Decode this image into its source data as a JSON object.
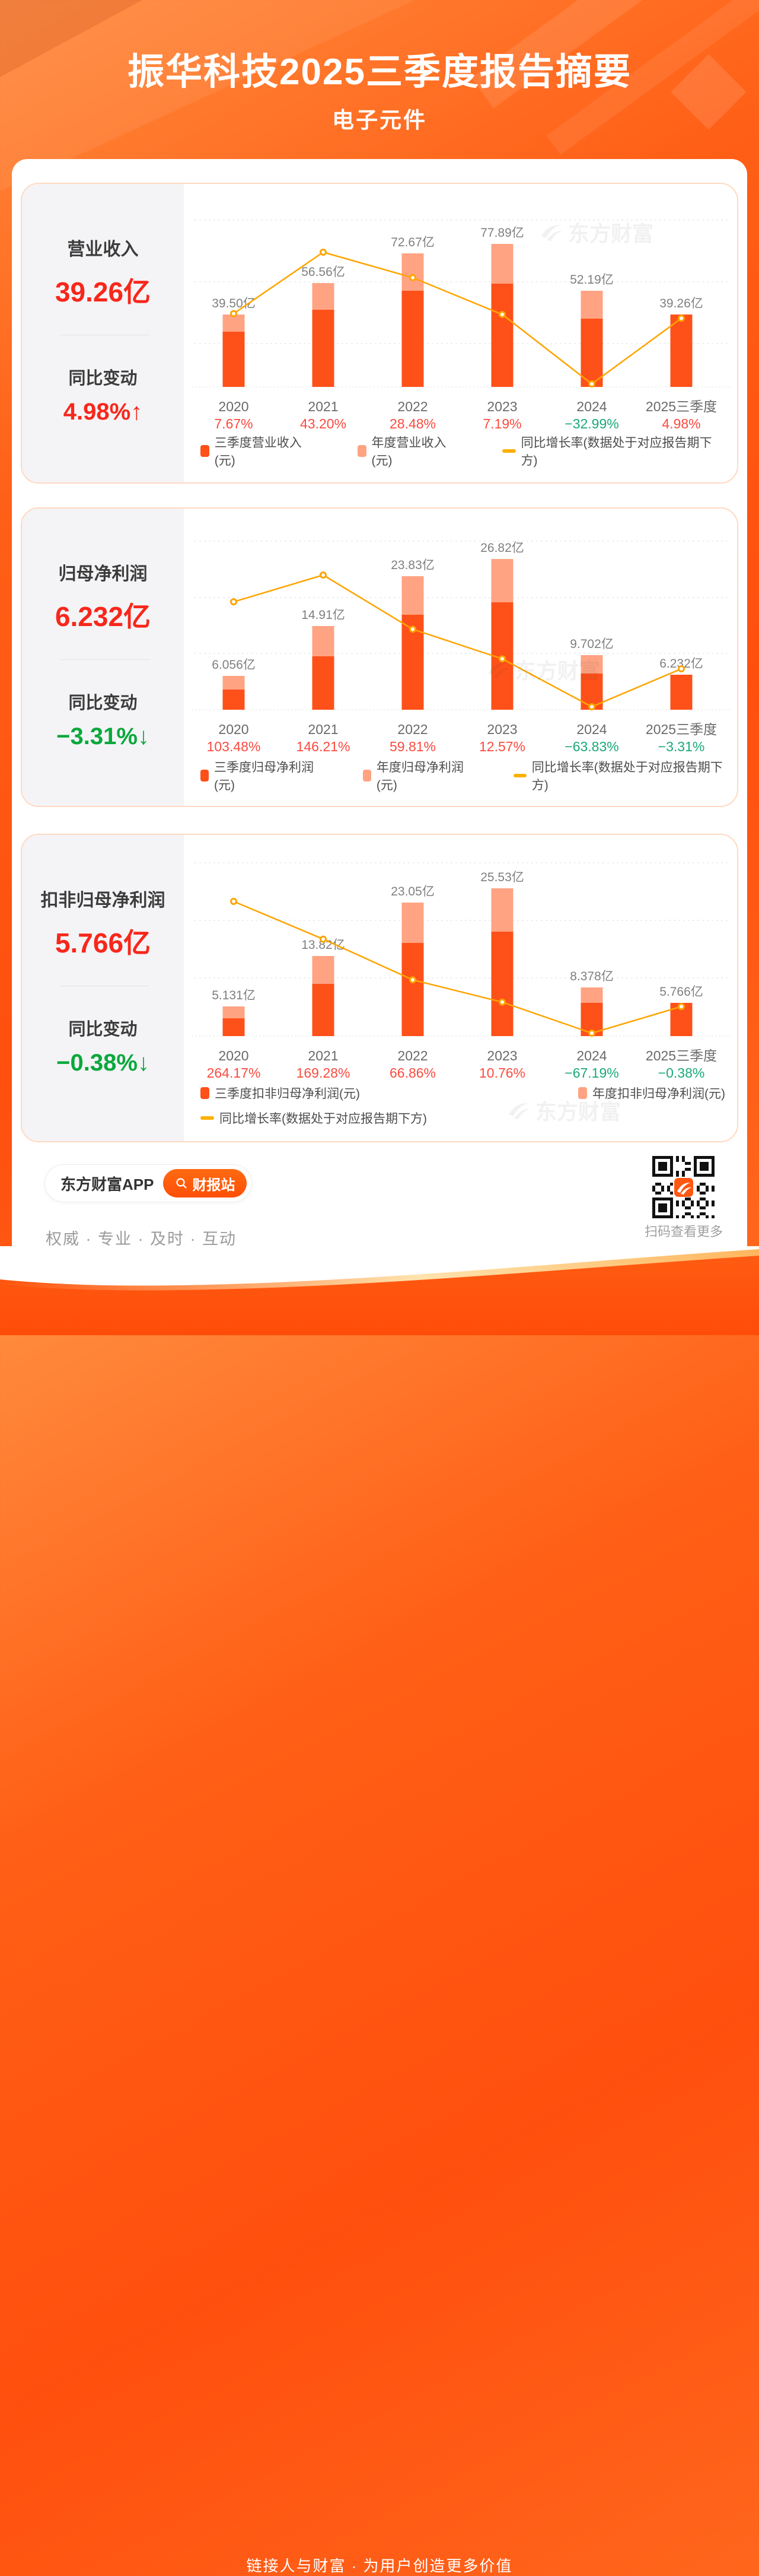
{
  "header": {
    "title": "振华科技2025三季度报告摘要",
    "subtitle": "电子元件"
  },
  "watermark_brand": "东方财富",
  "colors": {
    "q3_bar": "#fe5019",
    "annual_bar": "#ffa383",
    "growth_line": "#ffa400",
    "positive_text": "#fb4a3f",
    "negative_text": "#1aa97b",
    "panel_value_red": "#f8271b",
    "panel_value_green": "#0aa83c",
    "bar_value_label": "#7f7f7f",
    "year_label": "#6a6a6a"
  },
  "charts": [
    {
      "panel": {
        "metric_label": "营业收入",
        "metric_value": "39.26亿",
        "change_label": "同比变动",
        "change_value": "4.98%",
        "change_arrow": "↑",
        "trend": "up"
      },
      "chart_data": {
        "type": "bar+line",
        "categories": [
          "2020",
          "2021",
          "2022",
          "2023",
          "2024",
          "2025三季度"
        ],
        "bar_value_labels": [
          "39.50亿",
          "56.56亿",
          "72.67亿",
          "77.89亿",
          "52.19亿",
          "39.26亿"
        ],
        "annual_totals": [
          39.5,
          56.56,
          72.67,
          77.89,
          52.19,
          39.26
        ],
        "q3_values_est": [
          30.0,
          42.0,
          52.3,
          56.1,
          37.1,
          39.26
        ],
        "growth_pct": [
          7.67,
          43.2,
          28.48,
          7.19,
          -32.99,
          4.98
        ],
        "growth_labels": [
          "7.67%",
          "43.20%",
          "28.48%",
          "7.19%",
          "−32.99%",
          "4.98%"
        ],
        "legend": [
          {
            "label": "三季度营业收入(元)",
            "swatch": "bar",
            "color": "#fe5019"
          },
          {
            "label": "年度营业收入(元)",
            "swatch": "bar",
            "color": "#ffa383"
          },
          {
            "label": "同比增长率(数据处于对应报告期下方)",
            "swatch": "line",
            "color": "#ffb000"
          }
        ],
        "legend_rows": 1
      }
    },
    {
      "panel": {
        "metric_label": "归母净利润",
        "metric_value": "6.232亿",
        "change_label": "同比变动",
        "change_value": "−3.31%",
        "change_arrow": "↓",
        "trend": "down"
      },
      "chart_data": {
        "type": "bar+line",
        "categories": [
          "2020",
          "2021",
          "2022",
          "2023",
          "2024",
          "2025三季度"
        ],
        "bar_value_labels": [
          "6.056亿",
          "14.91亿",
          "23.83亿",
          "26.82亿",
          "9.702亿",
          "6.232亿"
        ],
        "annual_totals": [
          6.056,
          14.91,
          23.83,
          26.82,
          9.702,
          6.232
        ],
        "q3_values_est": [
          3.6,
          9.5,
          16.9,
          19.1,
          6.5,
          6.232
        ],
        "growth_pct": [
          103.48,
          146.21,
          59.81,
          12.57,
          -63.83,
          -3.31
        ],
        "growth_labels": [
          "103.48%",
          "146.21%",
          "59.81%",
          "12.57%",
          "−63.83%",
          "−3.31%"
        ],
        "legend": [
          {
            "label": "三季度归母净利润(元)",
            "swatch": "bar",
            "color": "#fe5019"
          },
          {
            "label": "年度归母净利润(元)",
            "swatch": "bar",
            "color": "#ffa383"
          },
          {
            "label": "同比增长率(数据处于对应报告期下方)",
            "swatch": "line",
            "color": "#ffb000"
          }
        ],
        "legend_rows": 1
      }
    },
    {
      "panel": {
        "metric_label": "扣非归母净利润",
        "metric_value": "5.766亿",
        "change_label": "同比变动",
        "change_value": "−0.38%",
        "change_arrow": "↓",
        "trend": "down"
      },
      "chart_data": {
        "type": "bar+line",
        "categories": [
          "2020",
          "2021",
          "2022",
          "2023",
          "2024",
          "2025三季度"
        ],
        "bar_value_labels": [
          "5.131亿",
          "13.82亿",
          "23.05亿",
          "25.53亿",
          "8.378亿",
          "5.766亿"
        ],
        "annual_totals": [
          5.131,
          13.82,
          23.05,
          25.53,
          8.378,
          5.766
        ],
        "q3_values_est": [
          3.1,
          9.0,
          16.1,
          18.1,
          5.7,
          5.766
        ],
        "growth_pct": [
          264.17,
          169.28,
          66.86,
          10.76,
          -67.19,
          -0.38
        ],
        "growth_labels": [
          "264.17%",
          "169.28%",
          "66.86%",
          "10.76%",
          "−67.19%",
          "−0.38%"
        ],
        "legend": [
          {
            "label": "三季度扣非归母净利润(元)",
            "swatch": "bar",
            "color": "#fe5019"
          },
          {
            "label": "年度扣非归母净利润(元)",
            "swatch": "bar",
            "color": "#ffa383"
          },
          {
            "label": "同比增长率(数据处于对应报告期下方)",
            "swatch": "line",
            "color": "#ffb000"
          }
        ],
        "legend_rows": 2
      }
    }
  ],
  "footer": {
    "app_name": "东方财富APP",
    "report_button": "财报站",
    "slogan": "权威 · 专业 · 及时 · 互动",
    "qr_caption": "扫码查看更多",
    "bottom_text": "链接人与财富 · 为用户创造更多价值"
  }
}
